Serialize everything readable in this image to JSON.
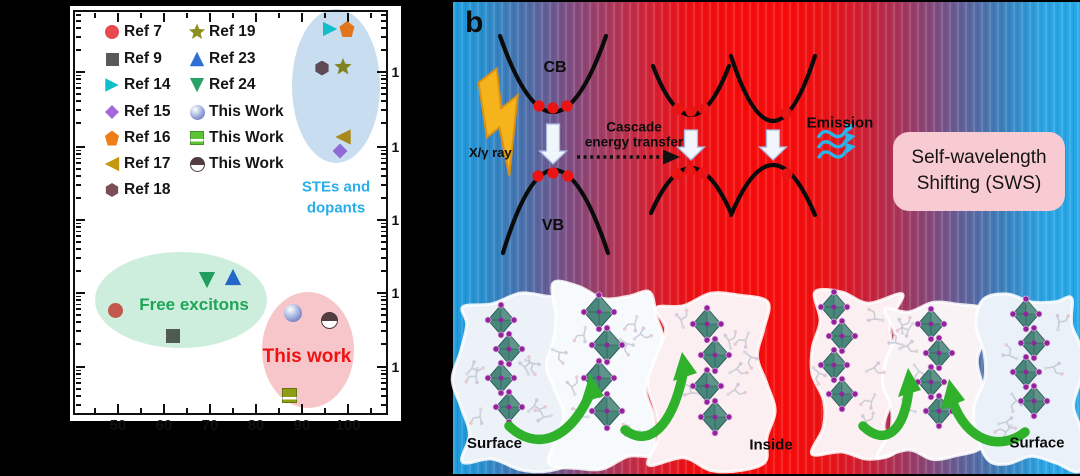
{
  "panel_a": {
    "legend": {
      "col1": [
        {
          "label": "Ref 7",
          "marker": "circle",
          "color": "#e8494f"
        },
        {
          "label": "Ref 9",
          "marker": "square",
          "color": "#595959"
        },
        {
          "label": "Ref 14",
          "marker": "tri-right",
          "color": "#0fc0ca"
        },
        {
          "label": "Ref 15",
          "marker": "diamond",
          "color": "#a466d8"
        },
        {
          "label": "Ref 16",
          "marker": "pentagon",
          "color": "#ee7d18"
        },
        {
          "label": "Ref 17",
          "marker": "tri-left",
          "color": "#c39a0e"
        },
        {
          "label": "Ref 18",
          "marker": "hexagon",
          "color": "#7c4f56"
        }
      ],
      "col2": [
        {
          "label": "Ref 19",
          "marker": "star",
          "color": "#8f8f1f"
        },
        {
          "label": "Ref 23",
          "marker": "tri-up",
          "color": "#2e6fd4"
        },
        {
          "label": "Ref 24",
          "marker": "tri-down",
          "color": "#2aa266"
        },
        {
          "label": "This Work",
          "marker": "sphere",
          "color": ""
        },
        {
          "label": "This Work",
          "marker": "square-stripe",
          "color": "#5ec433"
        },
        {
          "label": "This Work",
          "marker": "half",
          "color": ""
        }
      ]
    },
    "groups": {
      "ste": {
        "line1": "STEs and",
        "line2": "dopants",
        "color": "#29aee8"
      },
      "free": {
        "label": "Free excitons",
        "color": "#1ea556"
      },
      "work": {
        "label": "This work",
        "color": "#ee1212"
      }
    },
    "x_ticks": [
      "50",
      "60",
      "70",
      "80",
      "90",
      "100"
    ],
    "y_tick_fragments": [
      "1",
      "1",
      "1",
      "1",
      "1"
    ]
  },
  "chart_data": {
    "type": "scatter",
    "x_axis": {
      "scale": "linear",
      "ticks": [
        50,
        60,
        70,
        80,
        90,
        100
      ]
    },
    "y_axis": {
      "scale": "log",
      "visible_decade_ticks": 5,
      "note": "y-axis numeric labels cropped out of the image; only leading digit 1 fragments visible on right edge"
    },
    "points": [
      {
        "ref": "Ref 7",
        "marker": "circle",
        "x": 49,
        "y_decades_above_lowest_tick": 0.8,
        "group": "Free excitons"
      },
      {
        "ref": "Ref 9",
        "marker": "square",
        "x": 62,
        "y_decades_above_lowest_tick": 0.4,
        "group": "Free excitons"
      },
      {
        "ref": "Ref 24",
        "marker": "tri-down",
        "x": 69,
        "y_decades_above_lowest_tick": 1.2,
        "group": "Free excitons"
      },
      {
        "ref": "Ref 23",
        "marker": "tri-up",
        "x": 75,
        "y_decades_above_lowest_tick": 1.25,
        "group": "Free excitons"
      },
      {
        "ref": "This Work",
        "marker": "sphere",
        "x": 88,
        "y_decades_above_lowest_tick": 0.75,
        "group": "This work"
      },
      {
        "ref": "This Work",
        "marker": "half",
        "x": 96,
        "y_decades_above_lowest_tick": 0.65,
        "group": "This work"
      },
      {
        "ref": "This Work",
        "marker": "square-stripe",
        "x": 87,
        "y_decades_above_lowest_tick": -0.4,
        "group": "This work"
      },
      {
        "ref": "Ref 14",
        "marker": "tri-right",
        "x": 96,
        "y_decades_above_lowest_tick": 4.6,
        "group": "STEs and dopants"
      },
      {
        "ref": "Ref 16",
        "marker": "pentagon",
        "x": 100,
        "y_decades_above_lowest_tick": 4.6,
        "group": "STEs and dopants"
      },
      {
        "ref": "Ref 18",
        "marker": "hexagon",
        "x": 95,
        "y_decades_above_lowest_tick": 4.1,
        "group": "STEs and dopants"
      },
      {
        "ref": "Ref 19",
        "marker": "star",
        "x": 99,
        "y_decades_above_lowest_tick": 4.1,
        "group": "STEs and dopants"
      },
      {
        "ref": "Ref 17",
        "marker": "tri-left",
        "x": 99,
        "y_decades_above_lowest_tick": 3.1,
        "group": "STEs and dopants"
      },
      {
        "ref": "Ref 15",
        "marker": "diamond",
        "x": 98,
        "y_decades_above_lowest_tick": 3.0,
        "group": "STEs and dopants"
      }
    ]
  },
  "panel_b": {
    "label": "b",
    "cb": "CB",
    "vb": "VB",
    "xray": "X/γ ray",
    "cascade_line1": "Cascade",
    "cascade_line2": "energy transfer",
    "emission": "Emission",
    "sws_line1": "Self-wavelength",
    "sws_line2": "Shifting (SWS)",
    "surface_left": "Surface",
    "inside": "Inside",
    "surface_right": "Surface",
    "colors": {
      "sws_box": "#f8cad1",
      "emission_wave": "#2ab4ea",
      "lightning": "#f5b31c",
      "carrier_dot": "#ea1414",
      "transfer_arrow_green": "#2fb12b",
      "gradient_blue": "#27a9e8",
      "gradient_red": "#f60d0d"
    }
  }
}
